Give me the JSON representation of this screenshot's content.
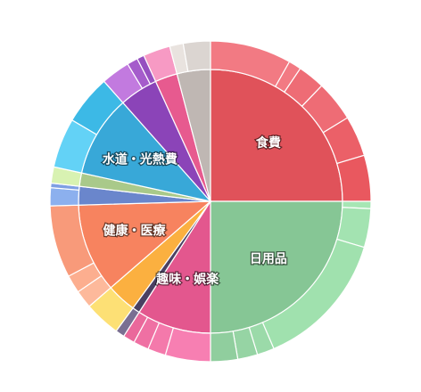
{
  "chart_data": {
    "type": "sunburst",
    "categories": [
      {
        "label": "食費",
        "value": 27.5,
        "color": "#E0525A",
        "show_label": true,
        "sub": [
          {
            "value": 9.0,
            "color": "#F27A83"
          },
          {
            "value": 1.4,
            "color": "#F27A83"
          },
          {
            "value": 3.0,
            "color": "#EE6C75"
          },
          {
            "value": 4.5,
            "color": "#EE6C75"
          },
          {
            "value": 4.5,
            "color": "#EB6068"
          },
          {
            "value": 5.1,
            "color": "#E9585F"
          }
        ]
      },
      {
        "label": "日用品",
        "value": 27.5,
        "color": "#86C695",
        "show_label": true,
        "sub": [
          {
            "value": 0.8,
            "color": "#A6E6B4"
          },
          {
            "value": 4.3,
            "color": "#A3E3B1"
          },
          {
            "value": 15.3,
            "color": "#A0E1AE"
          },
          {
            "value": 1.9,
            "color": "#9BDAA9"
          },
          {
            "value": 2.2,
            "color": "#96D4A4"
          },
          {
            "value": 3.0,
            "color": "#90CE9E"
          }
        ]
      },
      {
        "label": "趣味・娯楽",
        "value": 10.0,
        "color": "#E3578E",
        "show_label": true,
        "sub": [
          {
            "value": 5.0,
            "color": "#F77FB2"
          },
          {
            "value": 2.0,
            "color": "#F479AB"
          },
          {
            "value": 1.7,
            "color": "#EF70A3"
          },
          {
            "value": 1.3,
            "color": "#EA689B"
          }
        ]
      },
      {
        "label": "",
        "value": 1.0,
        "color": "#4A4062",
        "show_label": false,
        "sub": [
          {
            "value": 1.0,
            "color": "#7A6F92"
          }
        ]
      },
      {
        "label": "",
        "value": 4.0,
        "color": "#FBB040",
        "show_label": false,
        "sub": [
          {
            "value": 4.0,
            "color": "#FDE075"
          }
        ]
      },
      {
        "label": "健康・医療",
        "value": 12.0,
        "color": "#F7835F",
        "show_label": true,
        "sub": [
          {
            "value": 2.0,
            "color": "#FDB99B"
          },
          {
            "value": 2.0,
            "color": "#FCAE8F"
          },
          {
            "value": 8.0,
            "color": "#F89A7A"
          }
        ]
      },
      {
        "label": "",
        "value": 2.5,
        "color": "#6A86CC",
        "show_label": false,
        "sub": [
          {
            "value": 2.0,
            "color": "#8CB0EE"
          },
          {
            "value": 0.5,
            "color": "#7E9FE3"
          }
        ]
      },
      {
        "label": "",
        "value": 1.8,
        "color": "#A9C98A",
        "show_label": false,
        "sub": [
          {
            "value": 1.8,
            "color": "#D8F2B2"
          }
        ]
      },
      {
        "label": "水道・光熱費",
        "value": 11.0,
        "color": "#38A8D8",
        "show_label": true,
        "sub": [
          {
            "value": 5.5,
            "color": "#63D2F6"
          },
          {
            "value": 5.5,
            "color": "#3CB9E6"
          }
        ]
      },
      {
        "label": "",
        "value": 5.2,
        "color": "#8B44B8",
        "show_label": false,
        "sub": [
          {
            "value": 3.2,
            "color": "#C27ADF"
          },
          {
            "value": 1.2,
            "color": "#A55CCB"
          },
          {
            "value": 0.8,
            "color": "#9650C0"
          }
        ]
      },
      {
        "label": "",
        "value": 3.0,
        "color": "#E75A8F",
        "show_label": false,
        "sub": [
          {
            "value": 3.0,
            "color": "#F79AC4"
          }
        ]
      },
      {
        "label": "",
        "value": 4.5,
        "color": "#BFB7B3",
        "show_label": false,
        "sub": [
          {
            "value": 1.5,
            "color": "#E9E3DF"
          },
          {
            "value": 3.0,
            "color": "#DBD5D1"
          }
        ]
      }
    ]
  }
}
